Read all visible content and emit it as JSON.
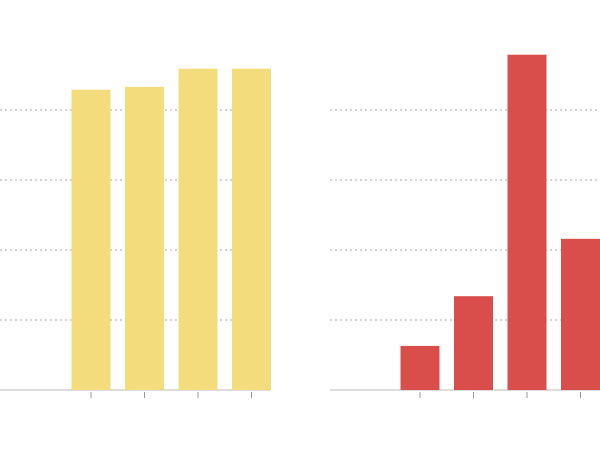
{
  "chart_data": [
    {
      "type": "bar",
      "values": [
        null,
        4.29,
        4.33,
        4.59,
        4.59
      ],
      "color": "#f3dc7b",
      "ylim": [
        0,
        5
      ],
      "yticks": [
        0,
        1,
        2,
        3,
        4
      ],
      "grid": true
    },
    {
      "type": "bar",
      "values": [
        null,
        0.63,
        1.34,
        4.79,
        2.16
      ],
      "color": "#d94d4b",
      "ylim": [
        0,
        5
      ],
      "yticks": [
        0,
        1,
        2,
        3,
        4
      ],
      "grid": true
    }
  ]
}
